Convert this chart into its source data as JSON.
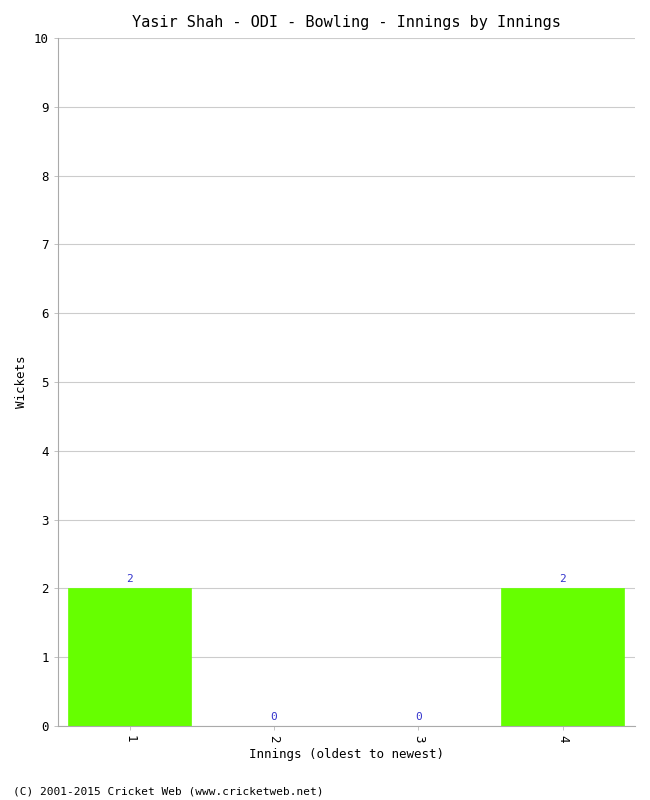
{
  "title": "Yasir Shah - ODI - Bowling - Innings by Innings",
  "xlabel": "Innings (oldest to newest)",
  "ylabel": "Wickets",
  "categories": [
    1,
    2,
    3,
    4
  ],
  "values": [
    2,
    0,
    0,
    2
  ],
  "bar_color": "#66ff00",
  "bar_edge_color": "#66ff00",
  "ylim": [
    0,
    10
  ],
  "yticks": [
    0,
    1,
    2,
    3,
    4,
    5,
    6,
    7,
    8,
    9,
    10
  ],
  "xticks": [
    1,
    2,
    3,
    4
  ],
  "annotation_color": "#3333cc",
  "background_color": "#ffffff",
  "grid_color": "#cccccc",
  "footer": "(C) 2001-2015 Cricket Web (www.cricketweb.net)",
  "title_fontsize": 11,
  "axis_label_fontsize": 9,
  "tick_fontsize": 9,
  "annotation_fontsize": 8,
  "footer_fontsize": 8,
  "bar_width": 0.85,
  "xlim": [
    0.5,
    4.5
  ]
}
